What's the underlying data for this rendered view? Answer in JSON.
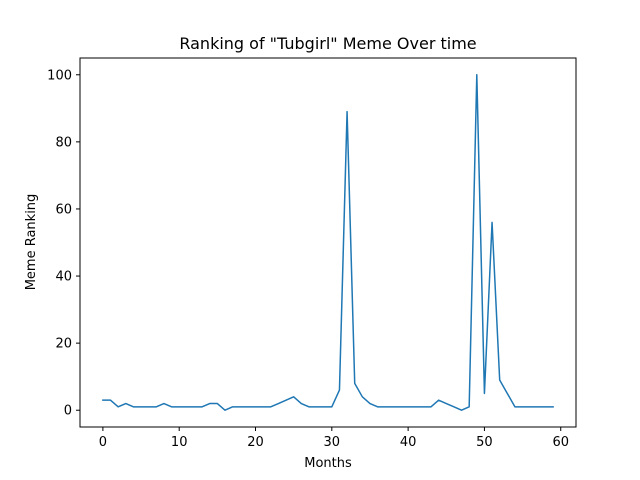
{
  "chart_data": {
    "type": "line",
    "title": "Ranking of \"Tubgirl\" Meme Over time",
    "xlabel": "Months",
    "ylabel": "Meme Ranking",
    "xlim": [
      -3,
      62
    ],
    "ylim": [
      -5,
      105
    ],
    "xticks": [
      0,
      10,
      20,
      30,
      40,
      50,
      60
    ],
    "yticks": [
      0,
      20,
      40,
      60,
      80,
      100
    ],
    "grid": false,
    "line_color": "#1f77b4",
    "series": [
      {
        "x": [
          0,
          1,
          2,
          3,
          4,
          5,
          6,
          7,
          8,
          9,
          10,
          11,
          12,
          13,
          14,
          15,
          16,
          17,
          18,
          19,
          20,
          21,
          22,
          23,
          24,
          25,
          26,
          27,
          28,
          29,
          30,
          31,
          32,
          33,
          34,
          35,
          36,
          37,
          38,
          39,
          40,
          41,
          42,
          43,
          44,
          45,
          46,
          47,
          48,
          49,
          50,
          51,
          52,
          53,
          54,
          55,
          56,
          57,
          58,
          59
        ],
        "values": [
          3,
          3,
          1,
          2,
          1,
          1,
          1,
          1,
          2,
          1,
          1,
          1,
          1,
          1,
          2,
          2,
          0,
          1,
          1,
          1,
          1,
          1,
          1,
          2,
          3,
          4,
          2,
          1,
          1,
          1,
          1,
          6,
          89,
          8,
          4,
          2,
          1,
          1,
          1,
          1,
          1,
          1,
          1,
          1,
          3,
          2,
          1,
          0,
          1,
          100,
          5,
          56,
          9,
          5,
          1,
          1,
          1,
          1,
          1,
          1
        ]
      }
    ]
  }
}
